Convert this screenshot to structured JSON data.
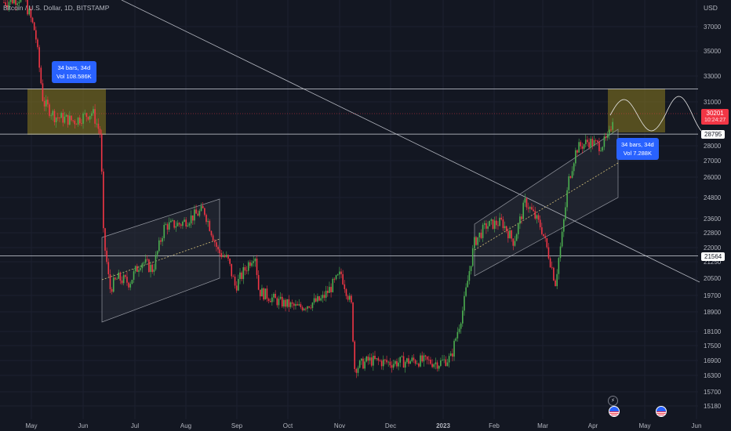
{
  "title": "Bitcoin / U.S. Dollar, 1D, BITSTAMP",
  "currency": "USD",
  "colors": {
    "up": "#4caf50",
    "down": "#f23645",
    "zone": "#8d7c1f",
    "measure": "#2962ff"
  },
  "chart_data": {
    "type": "candlestick",
    "y_ticks": [
      37000,
      35000,
      33000,
      31000,
      28000,
      27000,
      26000,
      24800,
      23600,
      22800,
      22000,
      21250,
      20500,
      19700,
      18900,
      18100,
      17500,
      16900,
      16300,
      15700,
      15180
    ],
    "x_ticks": [
      "May",
      "Jun",
      "Jul",
      "Aug",
      "Sep",
      "Oct",
      "Nov",
      "Dec",
      "2023",
      "Feb",
      "Mar",
      "Apr",
      "May",
      "Jun"
    ],
    "levels": [
      32000,
      28795,
      21564
    ],
    "price_labels": {
      "level_upper": "28795",
      "level_lower": "21564",
      "last_price": "30201",
      "countdown": "10:24:27"
    },
    "measurements": [
      {
        "bars": "34 bars, 34d",
        "volume": "Vol 108.586K"
      },
      {
        "bars": "34 bars, 34d",
        "volume": "Vol 7.288K"
      }
    ],
    "overlays": [
      "supply zone rectangle",
      "projection rectangle",
      "ascending channel Jun-Aug",
      "ascending channel Jan-Apr",
      "descending trendline",
      "sine projection"
    ],
    "trend": "decline May-Jun 2022, range Jun-Nov, drop in Nov, rally Jan-Apr 2023"
  },
  "icons": [
    "flash-icon",
    "flag-icon",
    "flag-icon"
  ]
}
